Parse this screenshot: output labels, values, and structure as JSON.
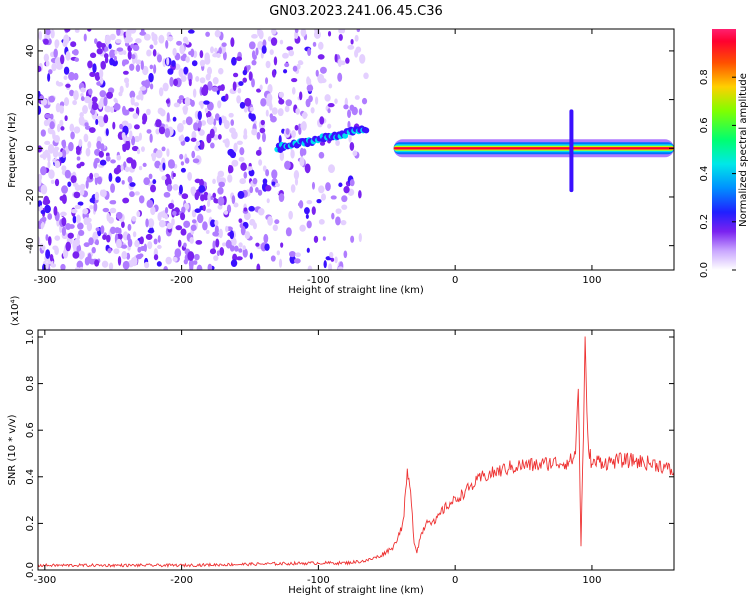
{
  "title": "GN03.2023.241.06.45.C36",
  "colors": {
    "line": "#ee3333",
    "spectrogram_background": "#ffffff",
    "colormap": [
      "#ffffff",
      "#e4d0ff",
      "#b07cff",
      "#7a22f0",
      "#3a10ff",
      "#0070ff",
      "#00e0f0",
      "#00ff70",
      "#c8ff00",
      "#ffd000",
      "#ff4000",
      "#ff0030"
    ]
  },
  "chart_data": [
    {
      "type": "heatmap",
      "xlabel": "Height of straight line (km)",
      "ylabel": "Frequency (Hz)",
      "xlim": [
        -305,
        160
      ],
      "ylim": [
        -50,
        49
      ],
      "x_ticks": [
        -300,
        -200,
        -100,
        0,
        100
      ],
      "x_tick_labels": [
        "-300",
        "-200",
        "-100",
        "0",
        "100"
      ],
      "y_ticks": [
        -40,
        -20,
        0,
        20,
        40
      ],
      "y_tick_labels": [
        "-40",
        "-20",
        "0",
        "20",
        "40"
      ],
      "colorbar": {
        "label": "Normalized spectral amplitude",
        "range": [
          0.0,
          1.0
        ],
        "ticks": [
          0.0,
          0.2,
          0.4,
          0.6,
          0.8
        ],
        "tick_labels": [
          "0.0",
          "0.2",
          "0.4",
          "0.6",
          "0.8"
        ]
      },
      "features": [
        {
          "segment": "noise region",
          "x_range": [
            -305,
            -65
          ],
          "freq_range": [
            -50,
            49
          ],
          "amplitude": 0.1
        },
        {
          "segment": "rising trace",
          "x_range": [
            -130,
            -65
          ],
          "freq_range": [
            0,
            8
          ],
          "amplitude": 0.25
        },
        {
          "segment": "main trace",
          "x_range": [
            -45,
            160
          ],
          "freq": 0,
          "amplitude": 0.85
        },
        {
          "segment": "burst",
          "x": 85,
          "freq_range": [
            -18,
            16
          ],
          "amplitude": 0.3
        }
      ]
    },
    {
      "type": "line",
      "xlabel": "Height of straight line (km)",
      "ylabel": "SNR (10 * v/v)",
      "exponent_label": "(x10⁴)",
      "xlim": [
        -305,
        160
      ],
      "ylim": [
        0,
        1.03
      ],
      "x_ticks": [
        -300,
        -200,
        -100,
        0,
        100
      ],
      "x_tick_labels": [
        "-300",
        "-200",
        "-100",
        "0",
        "100"
      ],
      "y_ticks": [
        0,
        0.2,
        0.4,
        0.6,
        0.8,
        1.0
      ],
      "y_tick_labels": [
        "0.0",
        "0.2",
        "0.4",
        "0.6",
        "0.8",
        "1.0"
      ],
      "series": [
        {
          "x": [
            -305,
            -250,
            -200,
            -150,
            -100,
            -80,
            -65,
            -55,
            -45,
            -38,
            -35,
            -32,
            -30,
            -28,
            -25,
            -20,
            -15,
            -10,
            -5,
            0,
            10,
            20,
            30,
            40,
            50,
            60,
            70,
            80,
            85,
            88,
            90,
            92,
            95,
            97,
            100,
            105,
            110,
            120,
            130,
            140,
            150,
            160
          ],
          "y": [
            0.02,
            0.02,
            0.02,
            0.025,
            0.03,
            0.03,
            0.04,
            0.06,
            0.1,
            0.2,
            0.42,
            0.3,
            0.12,
            0.08,
            0.15,
            0.22,
            0.2,
            0.25,
            0.28,
            0.3,
            0.35,
            0.4,
            0.42,
            0.44,
            0.45,
            0.45,
            0.46,
            0.46,
            0.47,
            0.5,
            0.8,
            0.1,
            0.95,
            0.55,
            0.45,
            0.47,
            0.46,
            0.47,
            0.47,
            0.46,
            0.45,
            0.42
          ]
        }
      ]
    }
  ]
}
